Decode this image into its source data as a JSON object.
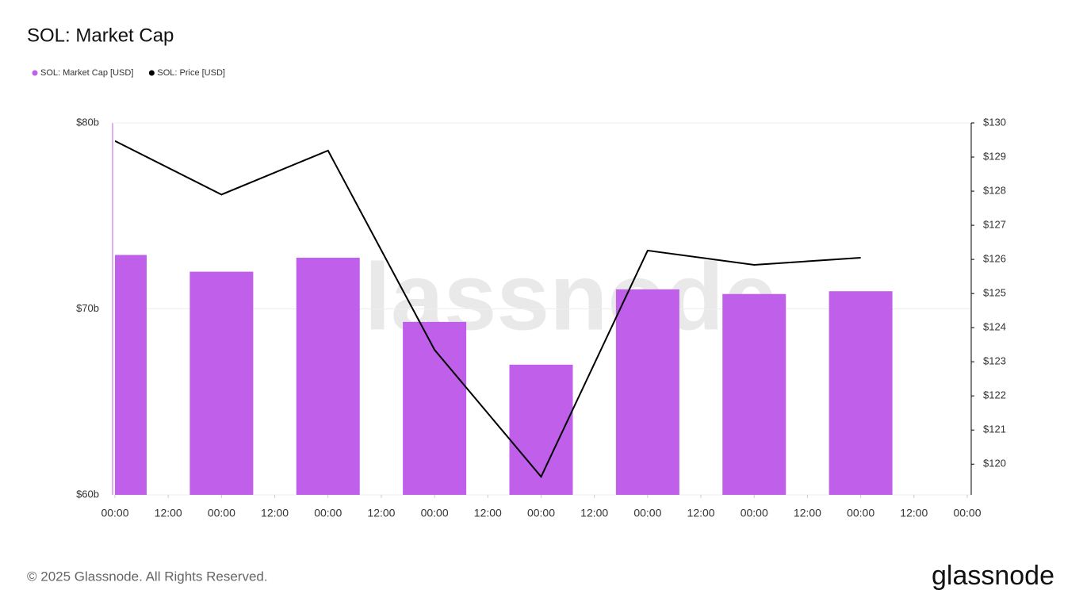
{
  "chart_data": {
    "type": "bar-line",
    "title": "SOL: Market Cap",
    "watermark": "glassnode",
    "footer": "© 2025 Glassnode. All Rights Reserved.",
    "brand": "glassnode",
    "x": [
      0,
      24,
      48,
      72,
      96,
      120,
      144,
      168
    ],
    "xlim": [
      0,
      192
    ],
    "xticks": [
      {
        "value": 0,
        "label": "00:00"
      },
      {
        "value": 12,
        "label": "12:00"
      },
      {
        "value": 24,
        "label": "00:00"
      },
      {
        "value": 36,
        "label": "12:00"
      },
      {
        "value": 48,
        "label": "00:00"
      },
      {
        "value": 60,
        "label": "12:00"
      },
      {
        "value": 72,
        "label": "00:00"
      },
      {
        "value": 84,
        "label": "12:00"
      },
      {
        "value": 96,
        "label": "00:00"
      },
      {
        "value": 108,
        "label": "12:00"
      },
      {
        "value": 120,
        "label": "00:00"
      },
      {
        "value": 132,
        "label": "12:00"
      },
      {
        "value": 144,
        "label": "00:00"
      },
      {
        "value": 156,
        "label": "12:00"
      },
      {
        "value": 168,
        "label": "00:00"
      },
      {
        "value": 180,
        "label": "12:00"
      },
      {
        "value": 192,
        "label": "00:00"
      }
    ],
    "ylim": [
      60,
      80
    ],
    "yticks": [
      {
        "value": 60,
        "label": "$60b"
      },
      {
        "value": 70,
        "label": "$70b"
      },
      {
        "value": 80,
        "label": "$80b"
      }
    ],
    "y2lim": [
      119.1,
      130
    ],
    "y2ticks": [
      {
        "value": 120,
        "label": "$120"
      },
      {
        "value": 121,
        "label": "$121"
      },
      {
        "value": 122,
        "label": "$122"
      },
      {
        "value": 123,
        "label": "$123"
      },
      {
        "value": 124,
        "label": "$124"
      },
      {
        "value": 125,
        "label": "$125"
      },
      {
        "value": 126,
        "label": "$126"
      },
      {
        "value": 127,
        "label": "$127"
      },
      {
        "value": 128,
        "label": "$128"
      },
      {
        "value": 129,
        "label": "$129"
      },
      {
        "value": 130,
        "label": "$130"
      }
    ],
    "grid": true,
    "series": [
      {
        "name": "SOL: Market Cap [USD]",
        "type": "bar",
        "color": "#bf5fea",
        "values": [
          72.9,
          72.0,
          72.75,
          69.3,
          67.0,
          71.05,
          70.8,
          70.95
        ]
      },
      {
        "name": "SOL: Price [USD]",
        "type": "line",
        "axis": "y2",
        "color": "#000000",
        "values": [
          129.47,
          127.9,
          129.19,
          123.35,
          119.63,
          126.26,
          125.84,
          126.05
        ]
      }
    ]
  }
}
